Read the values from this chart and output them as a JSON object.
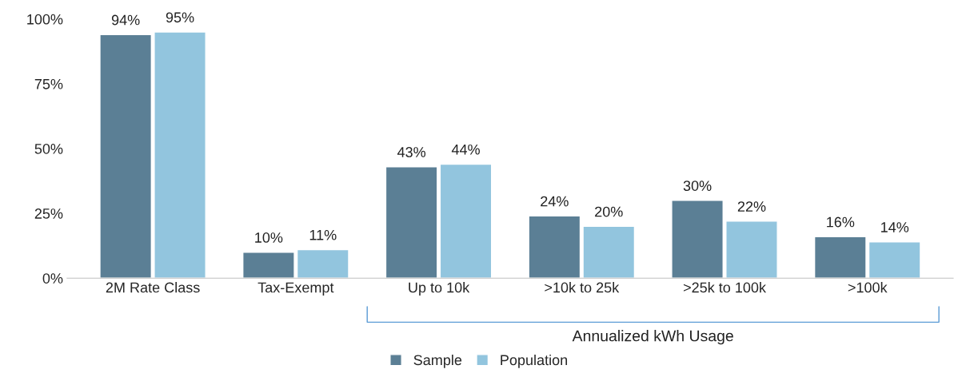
{
  "chart_data": {
    "type": "bar",
    "categories": [
      "2M Rate Class",
      "Tax-Exempt",
      "Up to 10k",
      ">10k to 25k",
      ">25k to 100k",
      ">100k"
    ],
    "series": [
      {
        "name": "Sample",
        "color": "#5b7f95",
        "values": [
          94,
          10,
          43,
          24,
          30,
          16
        ],
        "value_labels": [
          "94%",
          "10%",
          "43%",
          "24%",
          "30%",
          "16%"
        ]
      },
      {
        "name": "Population",
        "color": "#92c5de",
        "values": [
          95,
          11,
          44,
          20,
          22,
          14
        ],
        "value_labels": [
          "95%",
          "11%",
          "44%",
          "20%",
          "22%",
          "14%"
        ]
      }
    ],
    "ylim": [
      0,
      100
    ],
    "yticks": [
      {
        "value": 0,
        "label": "0%"
      },
      {
        "value": 25,
        "label": "25%"
      },
      {
        "value": 50,
        "label": "50%"
      },
      {
        "value": 75,
        "label": "75%"
      },
      {
        "value": 100,
        "label": "100%"
      }
    ],
    "annotations": [
      "Annualized kWh Usage"
    ],
    "grid": false,
    "legend": "bottom"
  }
}
